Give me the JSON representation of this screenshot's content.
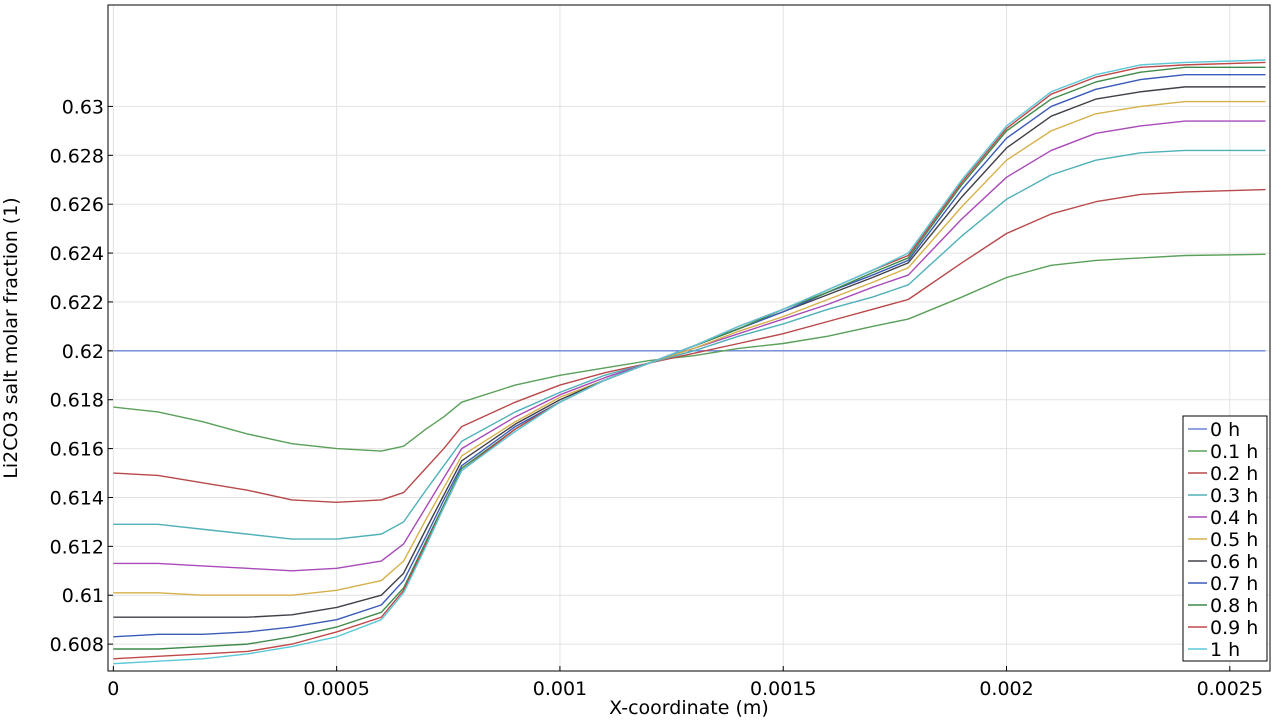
{
  "chart_data": {
    "type": "line",
    "title": "",
    "xlabel": "X-coordinate (m)",
    "ylabel": "Li2CO3 salt molar fraction (1)",
    "xlim": [
      -1.2e-05,
      0.00259
    ],
    "ylim": [
      0.6069,
      0.63415
    ],
    "x_ticks": [
      0,
      0.0005,
      0.001,
      0.0015,
      0.002,
      0.0025
    ],
    "x_tick_labels": [
      "0",
      "0.0005",
      "0.001",
      "0.0015",
      "0.002",
      "0.0025"
    ],
    "y_ticks": [
      0.608,
      0.61,
      0.612,
      0.614,
      0.616,
      0.618,
      0.62,
      0.622,
      0.624,
      0.626,
      0.628,
      0.63
    ],
    "y_tick_labels": [
      "0.608",
      "0.61",
      "0.612",
      "0.614",
      "0.616",
      "0.618",
      "0.62",
      "0.622",
      "0.624",
      "0.626",
      "0.628",
      "0.63"
    ],
    "grid": true,
    "legend_position": "bottom-right",
    "x": [
      0,
      0.0001,
      0.0002,
      0.0003,
      0.0004,
      0.0005,
      0.0006,
      0.00065,
      0.0007,
      0.00074,
      0.00078,
      0.0009,
      0.001,
      0.0011,
      0.0012,
      0.0013,
      0.0014,
      0.0015,
      0.0016,
      0.0017,
      0.00178,
      0.0019,
      0.002,
      0.0021,
      0.0022,
      0.0023,
      0.0024,
      0.00258
    ],
    "series": [
      {
        "name": "0 h",
        "color": "#6b84d6",
        "values": [
          0.62,
          0.62,
          0.62,
          0.62,
          0.62,
          0.62,
          0.62,
          0.62,
          0.62,
          0.62,
          0.62,
          0.62,
          0.62,
          0.62,
          0.62,
          0.62,
          0.62,
          0.62,
          0.62,
          0.62,
          0.62,
          0.62,
          0.62,
          0.62,
          0.62,
          0.62,
          0.62,
          0.62
        ]
      },
      {
        "name": "0.1 h",
        "color": "#5aa05a",
        "values": [
          0.6177,
          0.6175,
          0.6171,
          0.6166,
          0.6162,
          0.616,
          0.6159,
          0.6161,
          0.6168,
          0.6173,
          0.6179,
          0.6186,
          0.619,
          0.6193,
          0.6196,
          0.6198,
          0.6201,
          0.6203,
          0.6206,
          0.621,
          0.6213,
          0.6222,
          0.623,
          0.6235,
          0.6237,
          0.6238,
          0.6239,
          0.62395
        ]
      },
      {
        "name": "0.2 h",
        "color": "#b8484a",
        "values": [
          0.615,
          0.6149,
          0.6146,
          0.6143,
          0.6139,
          0.6138,
          0.6139,
          0.6142,
          0.6152,
          0.616,
          0.6169,
          0.6179,
          0.6186,
          0.6191,
          0.6195,
          0.6199,
          0.6203,
          0.6207,
          0.6212,
          0.6217,
          0.6221,
          0.6236,
          0.6248,
          0.6256,
          0.6261,
          0.6264,
          0.6265,
          0.6266
        ]
      },
      {
        "name": "0.3 h",
        "color": "#4fb0b8",
        "values": [
          0.6129,
          0.6129,
          0.6127,
          0.6125,
          0.6123,
          0.6123,
          0.6125,
          0.613,
          0.6143,
          0.6153,
          0.6163,
          0.6175,
          0.6183,
          0.619,
          0.6195,
          0.62,
          0.6206,
          0.6211,
          0.6217,
          0.6222,
          0.6227,
          0.6247,
          0.6262,
          0.6272,
          0.6278,
          0.6281,
          0.6282,
          0.6282
        ]
      },
      {
        "name": "0.4 h",
        "color": "#a84ab8",
        "values": [
          0.6113,
          0.6113,
          0.6112,
          0.6111,
          0.611,
          0.6111,
          0.6114,
          0.6121,
          0.6136,
          0.6148,
          0.616,
          0.6173,
          0.6182,
          0.6189,
          0.6195,
          0.6201,
          0.6207,
          0.6213,
          0.6219,
          0.6226,
          0.6231,
          0.6254,
          0.6271,
          0.6282,
          0.6289,
          0.6292,
          0.6294,
          0.6294
        ]
      },
      {
        "name": "0.5 h",
        "color": "#d6b04a",
        "values": [
          0.6101,
          0.6101,
          0.61,
          0.61,
          0.61,
          0.6102,
          0.6106,
          0.6114,
          0.6131,
          0.6144,
          0.6157,
          0.6171,
          0.6181,
          0.6188,
          0.6195,
          0.6201,
          0.6208,
          0.6214,
          0.6221,
          0.6228,
          0.6234,
          0.6259,
          0.6278,
          0.629,
          0.6297,
          0.63,
          0.6302,
          0.6302
        ]
      },
      {
        "name": "0.6 h",
        "color": "#404048",
        "values": [
          0.6091,
          0.6091,
          0.6091,
          0.6091,
          0.6092,
          0.6095,
          0.61,
          0.6109,
          0.6127,
          0.6141,
          0.6155,
          0.617,
          0.618,
          0.6188,
          0.6195,
          0.6202,
          0.6209,
          0.6216,
          0.6223,
          0.623,
          0.6236,
          0.6263,
          0.6283,
          0.6296,
          0.6303,
          0.6306,
          0.6308,
          0.6308
        ]
      },
      {
        "name": "0.7 h",
        "color": "#3a5ab8",
        "values": [
          0.6083,
          0.6084,
          0.6084,
          0.6085,
          0.6087,
          0.609,
          0.6096,
          0.6106,
          0.6124,
          0.6139,
          0.6153,
          0.6169,
          0.6179,
          0.6188,
          0.6195,
          0.6202,
          0.6209,
          0.6216,
          0.6224,
          0.6231,
          0.6237,
          0.6266,
          0.6287,
          0.63,
          0.6307,
          0.6311,
          0.6313,
          0.6313
        ]
      },
      {
        "name": "0.8 h",
        "color": "#3f8a4a",
        "values": [
          0.6078,
          0.6078,
          0.6079,
          0.608,
          0.6083,
          0.6087,
          0.6093,
          0.6103,
          0.6122,
          0.6137,
          0.6152,
          0.6168,
          0.6179,
          0.6188,
          0.6195,
          0.6202,
          0.6209,
          0.6217,
          0.6224,
          0.6232,
          0.6238,
          0.6268,
          0.629,
          0.6303,
          0.631,
          0.6314,
          0.6316,
          0.6316
        ]
      },
      {
        "name": "0.9 h",
        "color": "#c04848",
        "values": [
          0.6074,
          0.6075,
          0.6076,
          0.6077,
          0.608,
          0.6085,
          0.6091,
          0.6102,
          0.6121,
          0.6136,
          0.6151,
          0.6168,
          0.6179,
          0.6188,
          0.6195,
          0.6202,
          0.621,
          0.6217,
          0.6225,
          0.6233,
          0.6239,
          0.6269,
          0.6291,
          0.6305,
          0.6312,
          0.6316,
          0.6317,
          0.6318
        ]
      },
      {
        "name": "1 h",
        "color": "#5ac8d8",
        "values": [
          0.6072,
          0.6073,
          0.6074,
          0.6076,
          0.6079,
          0.6083,
          0.609,
          0.6101,
          0.612,
          0.6136,
          0.6151,
          0.6167,
          0.6179,
          0.6188,
          0.6195,
          0.6202,
          0.621,
          0.6217,
          0.6225,
          0.6233,
          0.624,
          0.627,
          0.6292,
          0.6306,
          0.6313,
          0.6317,
          0.6318,
          0.6319
        ]
      }
    ]
  }
}
